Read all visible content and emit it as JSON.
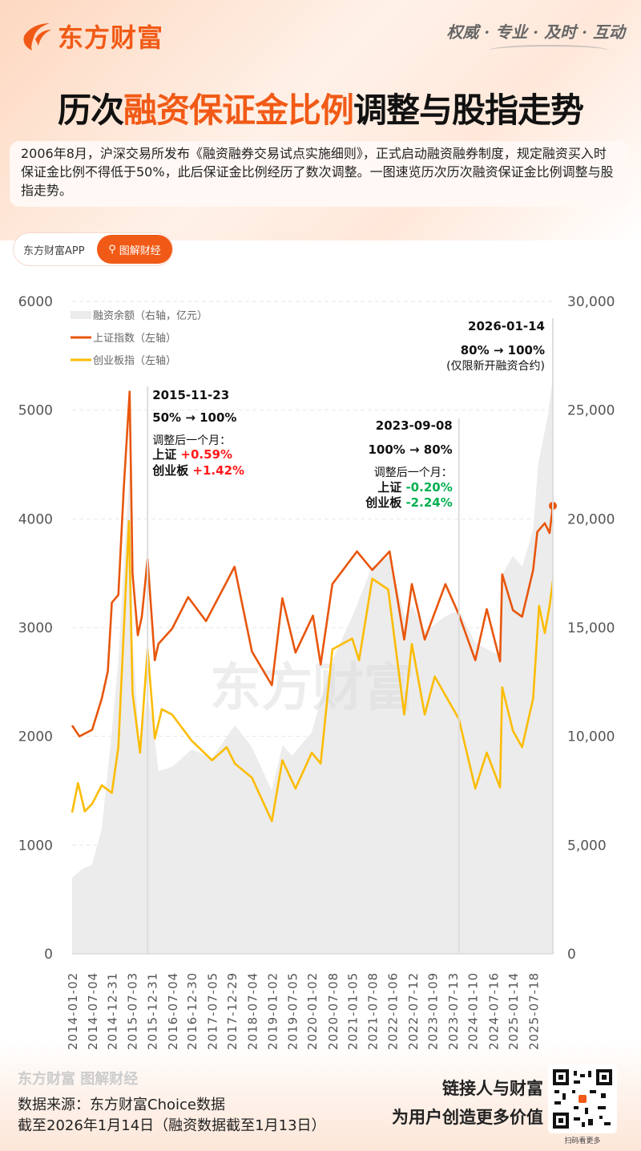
{
  "header": {
    "brand": "东方财富",
    "slogan": "权威 · 专业 · 及时 · 互动",
    "title_pre": "历次",
    "title_hl": "融资保证金比例",
    "title_post": "调整与股指走势"
  },
  "intro": "2006年8月，沪深交易所发布《融资融券交易试点实施细则》，正式启动融资融券制度，规定融资买入时保证金比例不得低于50%，此后保证金比例经历了数次调整。一图速览历次历次融资保证金比例调整与股指走势。",
  "pill": {
    "app": "东方财富APP",
    "channel": "图解财经"
  },
  "colors": {
    "accent": "#f15a16",
    "sse": "#e8560c",
    "chinext": "#fbbc04",
    "margin": "#ececec",
    "up": "#ff1a1a",
    "down": "#00b050"
  },
  "chart_data": {
    "type": "line+area",
    "left_axis": {
      "ylim": [
        0,
        6000
      ],
      "ticks": [
        "0",
        "1000",
        "2000",
        "3000",
        "4000",
        "5000",
        "6000"
      ]
    },
    "right_axis": {
      "ylim": [
        0,
        30000
      ],
      "ticks": [
        "0",
        "5,000",
        "10,000",
        "15,000",
        "20,000",
        "25,000",
        "30,000"
      ]
    },
    "x_ticks": [
      "2014-01-02",
      "2014-07-04",
      "2014-12-31",
      "2015-07-03",
      "2015-12-31",
      "2016-07-04",
      "2016-12-30",
      "2017-07-05",
      "2017-12-29",
      "2018-07-04",
      "2019-01-02",
      "2019-07-05",
      "2020-01-02",
      "2020-07-08",
      "2021-01-05",
      "2021-07-08",
      "2022-01-06",
      "2022-07-12",
      "2023-01-09",
      "2023-07-13",
      "2024-01-10",
      "2024-07-16",
      "2025-01-14",
      "2025-07-18"
    ],
    "xlim": [
      "2014-01-02",
      "2026-01-14"
    ],
    "grid": true,
    "legend": {
      "placement": "top-left",
      "entries": [
        "融资余额（右轴，亿元）",
        "上证指数（左轴）",
        "创业板指（左轴）"
      ]
    },
    "series": [
      {
        "name": "融资余额（右轴，亿元）",
        "axis": "right",
        "type": "area",
        "points": [
          [
            "2014-01-02",
            3500
          ],
          [
            "2014-04-01",
            3900
          ],
          [
            "2014-07-04",
            4100
          ],
          [
            "2014-10-01",
            5800
          ],
          [
            "2014-12-31",
            10200
          ],
          [
            "2015-03-01",
            13500
          ],
          [
            "2015-04-20",
            18000
          ],
          [
            "2015-06-18",
            22700
          ],
          [
            "2015-07-10",
            14500
          ],
          [
            "2015-09-10",
            9500
          ],
          [
            "2015-11-20",
            11900
          ],
          [
            "2016-01-15",
            10500
          ],
          [
            "2016-03-01",
            8400
          ],
          [
            "2016-07-04",
            8600
          ],
          [
            "2016-12-30",
            9400
          ],
          [
            "2017-07-05",
            9000
          ],
          [
            "2017-12-29",
            10300
          ],
          [
            "2018-02-01",
            10500
          ],
          [
            "2018-07-04",
            9500
          ],
          [
            "2019-01-02",
            7500
          ],
          [
            "2019-04-10",
            9600
          ],
          [
            "2019-07-05",
            9100
          ],
          [
            "2020-01-02",
            10200
          ],
          [
            "2020-07-08",
            13500
          ],
          [
            "2021-01-05",
            15500
          ],
          [
            "2021-07-08",
            17800
          ],
          [
            "2021-12-15",
            18300
          ],
          [
            "2022-04-27",
            15500
          ],
          [
            "2022-07-12",
            16000
          ],
          [
            "2022-10-31",
            14800
          ],
          [
            "2023-05-01",
            15500
          ],
          [
            "2023-09-08",
            15800
          ],
          [
            "2024-02-05",
            14300
          ],
          [
            "2024-09-18",
            13700
          ],
          [
            "2024-10-15",
            17500
          ],
          [
            "2025-01-14",
            18300
          ],
          [
            "2025-04-10",
            17800
          ],
          [
            "2025-07-18",
            19500
          ],
          [
            "2025-09-01",
            22500
          ],
          [
            "2025-12-01",
            24800
          ],
          [
            "2026-01-13",
            26500
          ]
        ]
      },
      {
        "name": "上证指数（左轴）",
        "axis": "left",
        "type": "line",
        "points": [
          [
            "2014-01-02",
            2100
          ],
          [
            "2014-03-10",
            2000
          ],
          [
            "2014-07-04",
            2060
          ],
          [
            "2014-10-01",
            2350
          ],
          [
            "2014-11-25",
            2600
          ],
          [
            "2014-12-31",
            3230
          ],
          [
            "2015-03-01",
            3300
          ],
          [
            "2015-04-20",
            4300
          ],
          [
            "2015-06-12",
            5170
          ],
          [
            "2015-07-08",
            3500
          ],
          [
            "2015-08-26",
            2930
          ],
          [
            "2015-10-01",
            3100
          ],
          [
            "2015-11-23",
            3630
          ],
          [
            "2016-01-28",
            2700
          ],
          [
            "2016-03-01",
            2850
          ],
          [
            "2016-07-04",
            2990
          ],
          [
            "2016-11-28",
            3280
          ],
          [
            "2017-05-10",
            3060
          ],
          [
            "2017-11-15",
            3420
          ],
          [
            "2018-01-26",
            3560
          ],
          [
            "2018-07-04",
            2780
          ],
          [
            "2019-01-02",
            2470
          ],
          [
            "2019-04-08",
            3270
          ],
          [
            "2019-08-06",
            2770
          ],
          [
            "2020-01-13",
            3110
          ],
          [
            "2020-03-23",
            2660
          ],
          [
            "2020-07-08",
            3400
          ],
          [
            "2021-02-18",
            3700
          ],
          [
            "2021-07-08",
            3530
          ],
          [
            "2021-12-13",
            3700
          ],
          [
            "2022-04-26",
            2890
          ],
          [
            "2022-07-05",
            3400
          ],
          [
            "2022-10-31",
            2890
          ],
          [
            "2023-05-08",
            3400
          ],
          [
            "2023-09-08",
            3120
          ],
          [
            "2024-02-05",
            2700
          ],
          [
            "2024-05-20",
            3170
          ],
          [
            "2024-09-18",
            2690
          ],
          [
            "2024-10-08",
            3490
          ],
          [
            "2025-01-14",
            3160
          ],
          [
            "2025-04-08",
            3100
          ],
          [
            "2025-07-18",
            3530
          ],
          [
            "2025-08-25",
            3880
          ],
          [
            "2025-11-01",
            3960
          ],
          [
            "2025-12-15",
            3870
          ],
          [
            "2026-01-14",
            4120
          ]
        ]
      },
      {
        "name": "创业板指（左轴）",
        "axis": "left",
        "type": "line",
        "points": [
          [
            "2014-01-02",
            1300
          ],
          [
            "2014-02-25",
            1570
          ],
          [
            "2014-04-28",
            1310
          ],
          [
            "2014-07-04",
            1380
          ],
          [
            "2014-09-30",
            1550
          ],
          [
            "2014-12-31",
            1480
          ],
          [
            "2015-03-01",
            1900
          ],
          [
            "2015-06-05",
            3980
          ],
          [
            "2015-07-08",
            2400
          ],
          [
            "2015-09-15",
            1850
          ],
          [
            "2015-11-23",
            2800
          ],
          [
            "2016-01-28",
            1980
          ],
          [
            "2016-04-01",
            2250
          ],
          [
            "2016-07-04",
            2200
          ],
          [
            "2016-12-30",
            1960
          ],
          [
            "2017-07-05",
            1780
          ],
          [
            "2017-11-15",
            1900
          ],
          [
            "2018-01-29",
            1750
          ],
          [
            "2018-07-04",
            1620
          ],
          [
            "2019-01-02",
            1220
          ],
          [
            "2019-04-08",
            1780
          ],
          [
            "2019-08-06",
            1520
          ],
          [
            "2020-01-02",
            1850
          ],
          [
            "2020-03-23",
            1750
          ],
          [
            "2020-07-08",
            2800
          ],
          [
            "2021-01-05",
            2900
          ],
          [
            "2021-03-09",
            2700
          ],
          [
            "2021-07-08",
            3450
          ],
          [
            "2021-12-01",
            3350
          ],
          [
            "2022-04-26",
            2200
          ],
          [
            "2022-07-05",
            2850
          ],
          [
            "2022-10-31",
            2200
          ],
          [
            "2023-01-30",
            2550
          ],
          [
            "2023-09-08",
            2160
          ],
          [
            "2024-02-05",
            1520
          ],
          [
            "2024-05-20",
            1850
          ],
          [
            "2024-09-18",
            1530
          ],
          [
            "2024-10-08",
            2450
          ],
          [
            "2025-01-14",
            2050
          ],
          [
            "2025-04-08",
            1900
          ],
          [
            "2025-07-18",
            2350
          ],
          [
            "2025-09-10",
            3200
          ],
          [
            "2025-11-01",
            2950
          ],
          [
            "2025-12-15",
            3200
          ],
          [
            "2026-01-14",
            3430
          ]
        ]
      }
    ],
    "annotations": [
      {
        "date": "2015-11-23",
        "change": "50% → 100%",
        "after_label": "调整后一个月：",
        "sse_label": "上证",
        "sse": "+0.59%",
        "cyb_label": "创业板",
        "cyb": "+1.42%",
        "dir": "up"
      },
      {
        "date": "2023-09-08",
        "change": "100% → 80%",
        "after_label": "调整后一个月：",
        "sse_label": "上证",
        "sse": "-0.20%",
        "cyb_label": "创业板",
        "cyb": "-2.24%",
        "dir": "down"
      },
      {
        "date": "2026-01-14",
        "change": "80% → 100%",
        "note": "(仅限新开融资合约)"
      }
    ]
  },
  "footer": {
    "brand": "东方财富 图解财经",
    "source": "数据来源：东方财富Choice数据",
    "asof": "截至2026年1月14日（融资数据截至1月13日）",
    "slogan1": "链接人与财富",
    "slogan2": "为用户创造更多价值",
    "qr_caption": "扫码看更多"
  }
}
